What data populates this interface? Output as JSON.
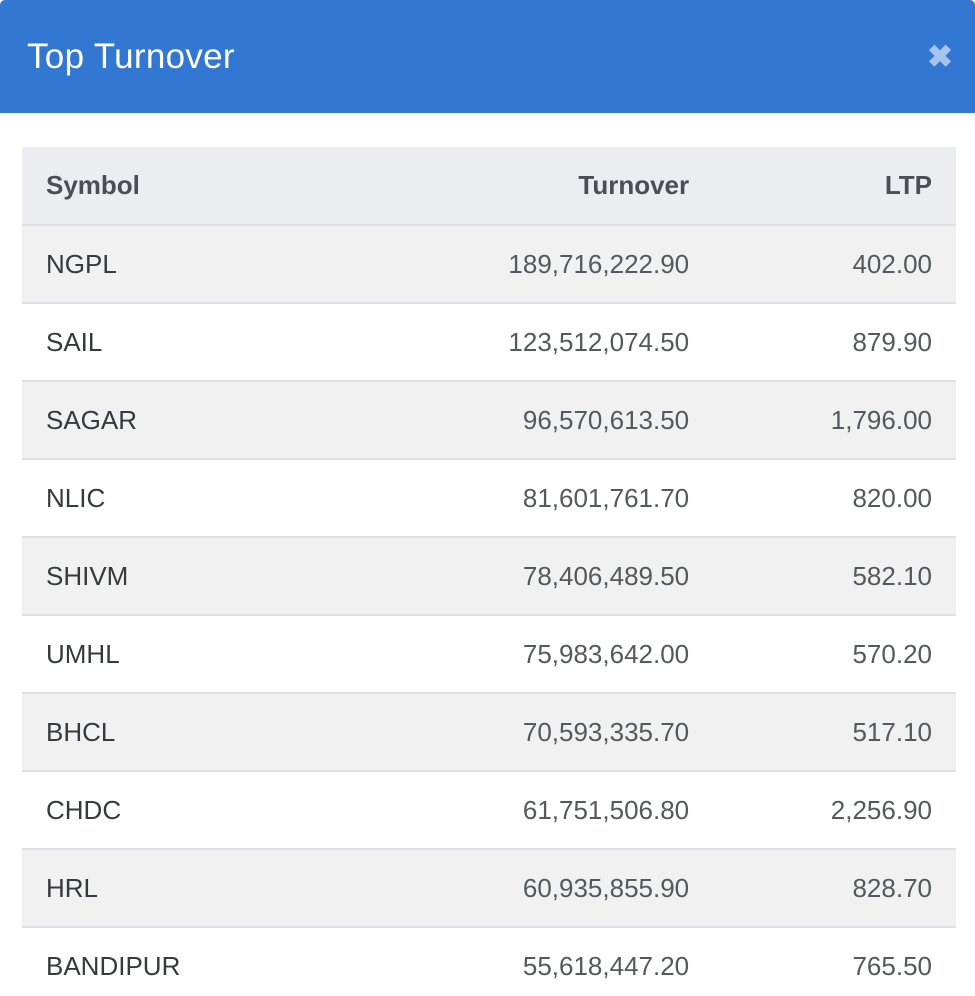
{
  "modal": {
    "title": "Top Turnover",
    "close_icon": "✖"
  },
  "table": {
    "columns": [
      {
        "label": "Symbol",
        "key": "symbol",
        "align": "left"
      },
      {
        "label": "Turnover",
        "key": "turnover",
        "align": "right"
      },
      {
        "label": "LTP",
        "key": "ltp",
        "align": "right"
      }
    ],
    "rows": [
      {
        "symbol": "NGPL",
        "turnover": "189,716,222.90",
        "ltp": "402.00"
      },
      {
        "symbol": "SAIL",
        "turnover": "123,512,074.50",
        "ltp": "879.90"
      },
      {
        "symbol": "SAGAR",
        "turnover": "96,570,613.50",
        "ltp": "1,796.00"
      },
      {
        "symbol": "NLIC",
        "turnover": "81,601,761.70",
        "ltp": "820.00"
      },
      {
        "symbol": "SHIVM",
        "turnover": "78,406,489.50",
        "ltp": "582.10"
      },
      {
        "symbol": "UMHL",
        "turnover": "75,983,642.00",
        "ltp": "570.20"
      },
      {
        "symbol": "BHCL",
        "turnover": "70,593,335.70",
        "ltp": "517.10"
      },
      {
        "symbol": "CHDC",
        "turnover": "61,751,506.80",
        "ltp": "2,256.90"
      },
      {
        "symbol": "HRL",
        "turnover": "60,935,855.90",
        "ltp": "828.70"
      },
      {
        "symbol": "BANDIPUR",
        "turnover": "55,618,447.20",
        "ltp": "765.50"
      }
    ]
  },
  "colors": {
    "header_bg": "#3277d2",
    "title_text": "#ffffff",
    "close_icon": "#a6c4ec",
    "table_header_bg": "#ebedf0",
    "table_header_text": "#4b4f54",
    "stripe_row_bg": "#f1f1f2",
    "row_border": "#dee0e4",
    "symbol_text": "#36393d",
    "number_text": "#55585c"
  }
}
